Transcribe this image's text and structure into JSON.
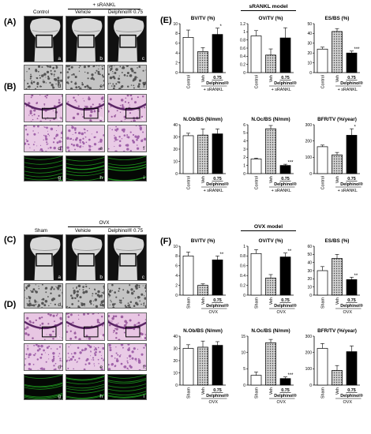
{
  "panel_labels": {
    "A": "(A)",
    "B": "(B)",
    "C": "(C)",
    "D": "(D)",
    "E": "(E)",
    "F": "(F)"
  },
  "top_image_headers": {
    "group_label": "+ sRANKL",
    "columns": [
      "Control",
      "Vehicle",
      "Delphinol® 0.75"
    ]
  },
  "bottom_image_headers": {
    "group_label": "OVX",
    "columns": [
      "Sham",
      "Vehicle",
      "Delphinol® 0.75"
    ]
  },
  "tile_letters": {
    "A": [
      "a",
      "b",
      "c",
      "d",
      "e",
      "f"
    ],
    "B": [
      "a",
      "b",
      "c",
      "d",
      "e",
      "f",
      "g",
      "h",
      "i"
    ],
    "C": [
      "a",
      "b",
      "c",
      "d",
      "e",
      "f"
    ],
    "D": [
      "a",
      "b",
      "c",
      "d",
      "e",
      "f",
      "g",
      "h",
      "i"
    ]
  },
  "model_titles": {
    "E": "sRANKL model",
    "F": "OVX model"
  },
  "colors": {
    "bar_open": "#ffffff",
    "bar_pattern": "#b9b9b9",
    "bar_filled": "#000000",
    "bone": "#e6e6e6",
    "stain_pink": "#d9a6d2",
    "fluor_green": "#1fa01f"
  },
  "chart_data": [
    {
      "id": "E1",
      "type": "bar",
      "title": "BV/TV (%)",
      "categories": [
        "Control",
        "Veh",
        "0.75"
      ],
      "ylim": [
        0,
        10
      ],
      "yticks": [
        "0",
        "2",
        "4",
        "6",
        "8",
        "10"
      ],
      "values": [
        7.2,
        4.3,
        7.8
      ],
      "errors": [
        1.5,
        0.8,
        1.3
      ],
      "sig": [
        "",
        "",
        "*"
      ],
      "xlabels": {
        "control": "Control",
        "veh": "Veh",
        "dose": "0.75",
        "drug": "Delphinol®",
        "group": "+ sRANKL"
      }
    },
    {
      "id": "E2",
      "type": "bar",
      "title": "OV/TV (%)",
      "categories": [
        "Control",
        "Veh",
        "0.75"
      ],
      "ylim": [
        0,
        1.2
      ],
      "yticks": [
        "0",
        "0.2",
        "0.4",
        "0.6",
        "0.8",
        "1",
        "1.2"
      ],
      "values": [
        0.9,
        0.43,
        0.85
      ],
      "errors": [
        0.13,
        0.15,
        0.25
      ],
      "sig": [
        "",
        "",
        ""
      ],
      "xlabels": {
        "control": "Control",
        "veh": "Veh",
        "dose": "0.75",
        "drug": "Delphinol®",
        "group": "+ sRANKL"
      }
    },
    {
      "id": "E3",
      "type": "bar",
      "title": "ES/BS (%)",
      "categories": [
        "Control",
        "Veh",
        "0.75"
      ],
      "ylim": [
        0,
        50
      ],
      "yticks": [
        "0",
        "10",
        "20",
        "30",
        "40",
        "50"
      ],
      "values": [
        24,
        42,
        20
      ],
      "errors": [
        2,
        3,
        2
      ],
      "sig": [
        "",
        "",
        "***"
      ],
      "xlabels": {
        "control": "Control",
        "veh": "Veh",
        "dose": "0.75",
        "drug": "Delphinol®",
        "group": "+ sRANKL"
      }
    },
    {
      "id": "E4",
      "type": "bar",
      "title": "N.Ob/BS (N/mm)",
      "categories": [
        "Control",
        "Veh",
        "0.75"
      ],
      "ylim": [
        0,
        40
      ],
      "yticks": [
        "0",
        "10",
        "20",
        "30",
        "40"
      ],
      "values": [
        31,
        31.5,
        32.5
      ],
      "errors": [
        2,
        5,
        4
      ],
      "sig": [
        "",
        "",
        ""
      ],
      "xlabels": {
        "control": "Control",
        "veh": "Veh",
        "dose": "0.75",
        "drug": "Delphinol®",
        "group": "+ sRANKL"
      }
    },
    {
      "id": "E5",
      "type": "bar",
      "title": "N.Oc/BS (N/mm)",
      "categories": [
        "Control",
        "Veh",
        "0.75"
      ],
      "ylim": [
        0,
        6
      ],
      "yticks": [
        "0",
        "1",
        "2",
        "3",
        "4",
        "5",
        "6"
      ],
      "values": [
        1.8,
        5.5,
        1.0
      ],
      "errors": [
        0.1,
        0.4,
        0.15
      ],
      "sig": [
        "",
        "",
        "***"
      ],
      "xlabels": {
        "control": "Control",
        "veh": "Veh",
        "dose": "0.75",
        "drug": "Delphinol®",
        "group": "+ sRANKL"
      }
    },
    {
      "id": "E6",
      "type": "bar",
      "title": "BFR/TV (%/year)",
      "categories": [
        "Control",
        "Veh",
        "0.75"
      ],
      "ylim": [
        0,
        300
      ],
      "yticks": [
        "0",
        "100",
        "200",
        "300"
      ],
      "values": [
        165,
        115,
        235
      ],
      "errors": [
        10,
        15,
        40
      ],
      "sig": [
        "",
        "",
        "*"
      ],
      "xlabels": {
        "control": "Control",
        "veh": "Veh",
        "dose": "0.75",
        "drug": "Delphinol®",
        "group": "+ sRANKL"
      }
    },
    {
      "id": "F1",
      "type": "bar",
      "title": "BV/TV (%)",
      "categories": [
        "Sham",
        "Veh",
        "0.75"
      ],
      "ylim": [
        0,
        10
      ],
      "yticks": [
        "0",
        "2",
        "4",
        "6",
        "8",
        "10"
      ],
      "values": [
        8.0,
        2.0,
        7.2
      ],
      "errors": [
        0.8,
        0.3,
        0.8
      ],
      "sig": [
        "",
        "",
        "**"
      ],
      "xlabels": {
        "control": "Sham",
        "veh": "Veh",
        "dose": "0.75",
        "drug": "Delphinol®",
        "group": "OVX"
      }
    },
    {
      "id": "F2",
      "type": "bar",
      "title": "OV/TV (%)",
      "categories": [
        "Sham",
        "Veh",
        "0.75"
      ],
      "ylim": [
        0,
        1
      ],
      "yticks": [
        "0",
        "0.2",
        "0.4",
        "0.6",
        "0.8",
        "1"
      ],
      "values": [
        0.85,
        0.35,
        0.78
      ],
      "errors": [
        0.08,
        0.07,
        0.08
      ],
      "sig": [
        "",
        "",
        "**"
      ],
      "xlabels": {
        "control": "Sham",
        "veh": "Veh",
        "dose": "0.75",
        "drug": "Delphinol®",
        "group": "OVX"
      }
    },
    {
      "id": "F3",
      "type": "bar",
      "title": "ES/BS (%)",
      "categories": [
        "Sham",
        "Veh",
        "0.75"
      ],
      "ylim": [
        0,
        60
      ],
      "yticks": [
        "0",
        "10",
        "20",
        "30",
        "40",
        "50",
        "60"
      ],
      "values": [
        30,
        45,
        19
      ],
      "errors": [
        5,
        5,
        3
      ],
      "sig": [
        "",
        "",
        "**"
      ],
      "xlabels": {
        "control": "Sham",
        "veh": "Veh",
        "dose": "0.75",
        "drug": "Delphinol®",
        "group": "OVX"
      }
    },
    {
      "id": "F4",
      "type": "bar",
      "title": "N.Ob/BS (N/mm)",
      "categories": [
        "Sham",
        "Veh",
        "0.75"
      ],
      "ylim": [
        0,
        40
      ],
      "yticks": [
        "0",
        "10",
        "20",
        "30",
        "40"
      ],
      "values": [
        30,
        31,
        32.5
      ],
      "errors": [
        3,
        5,
        3
      ],
      "sig": [
        "",
        "",
        ""
      ],
      "xlabels": {
        "control": "Sham",
        "veh": "Veh",
        "dose": "0.75",
        "drug": "Delphinol®",
        "group": "OVX"
      }
    },
    {
      "id": "F5",
      "type": "bar",
      "title": "N.Oc/BS (N/mm)",
      "categories": [
        "Sham",
        "Veh",
        "0.75"
      ],
      "ylim": [
        0,
        15
      ],
      "yticks": [
        "0",
        "5",
        "10",
        "15"
      ],
      "values": [
        3,
        13,
        2
      ],
      "errors": [
        1,
        1,
        0.5
      ],
      "sig": [
        "",
        "",
        "***"
      ],
      "xlabels": {
        "control": "Sham",
        "veh": "Veh",
        "dose": "0.75",
        "drug": "Delphinol®",
        "group": "OVX"
      }
    },
    {
      "id": "F6",
      "type": "bar",
      "title": "BFR/TV (%/year)",
      "categories": [
        "Sham",
        "Veh",
        "0.75"
      ],
      "ylim": [
        0,
        300
      ],
      "yticks": [
        "0",
        "100",
        "200",
        "300"
      ],
      "values": [
        225,
        90,
        205
      ],
      "errors": [
        30,
        30,
        35
      ],
      "sig": [
        "",
        "",
        ""
      ],
      "xlabels": {
        "control": "Sham",
        "veh": "Veh",
        "dose": "0.75",
        "drug": "Delphinol®",
        "group": "OVX"
      }
    }
  ]
}
